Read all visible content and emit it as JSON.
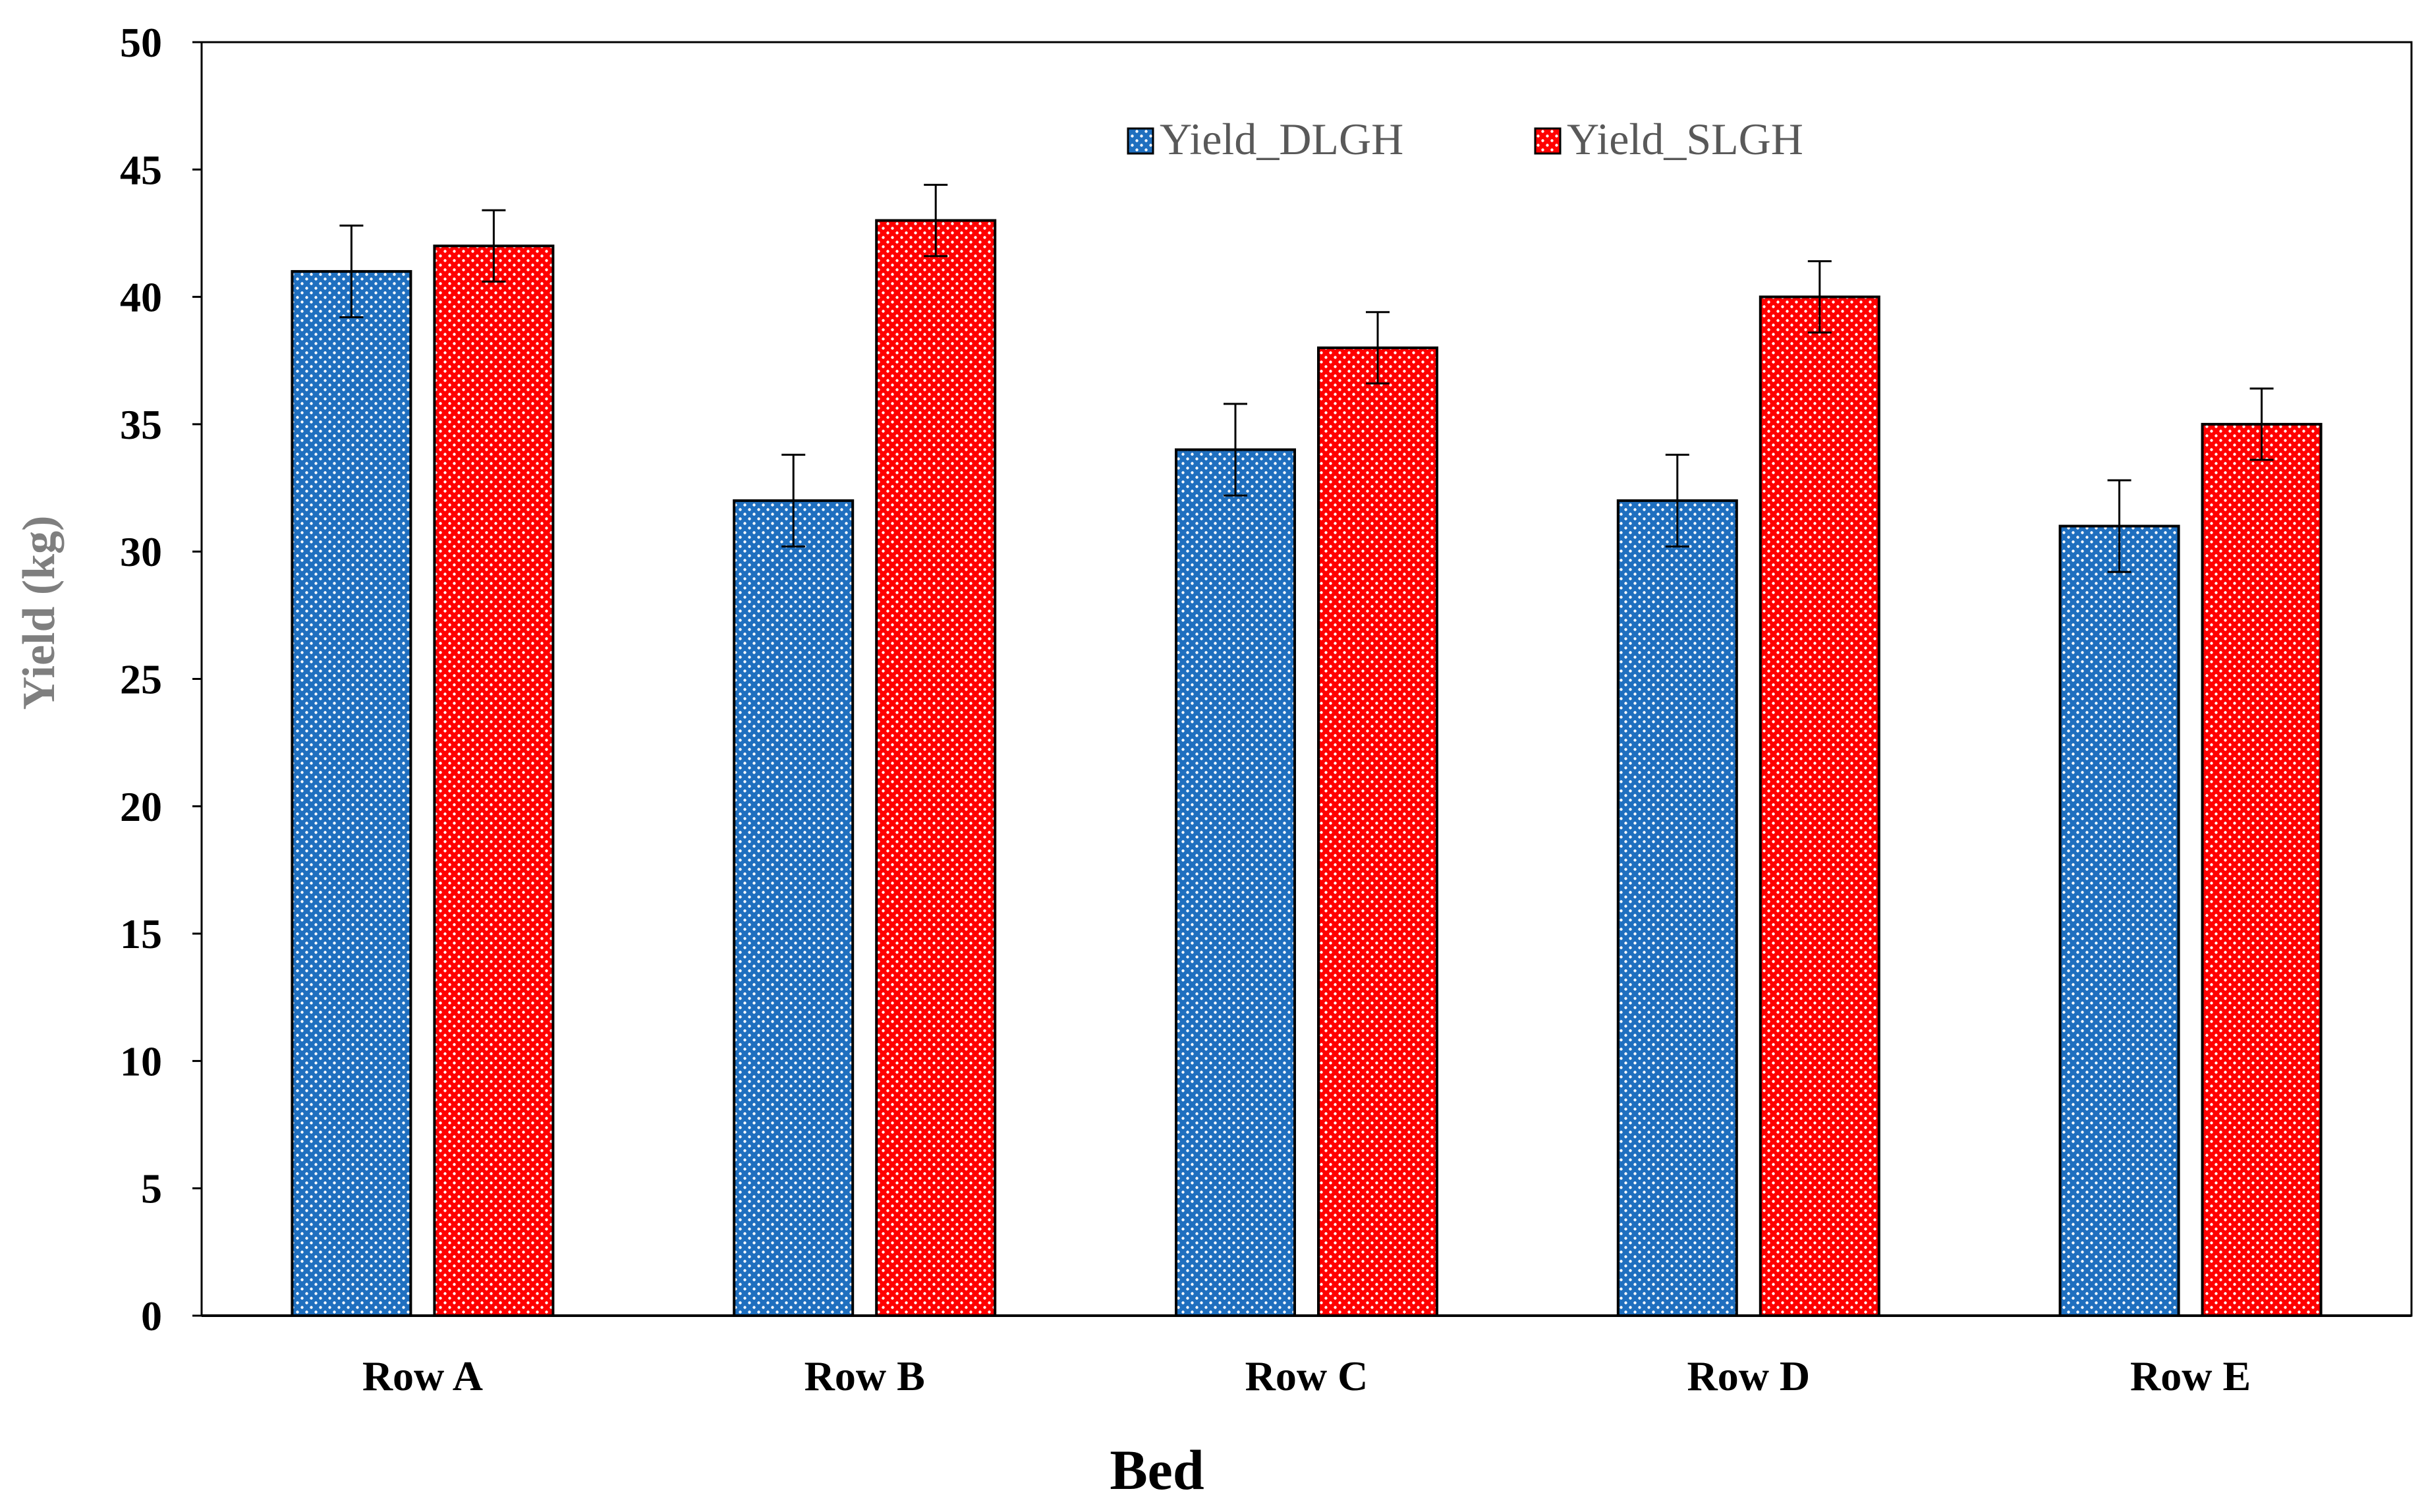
{
  "chart_data": {
    "type": "bar",
    "title": "",
    "xlabel": "Bed",
    "ylabel": "Yield (kg)",
    "categories": [
      "Row A",
      "Row B",
      "Row C",
      "Row D",
      "Row E"
    ],
    "ylim": [
      0,
      50
    ],
    "yticks": [
      0,
      5,
      10,
      15,
      20,
      25,
      30,
      35,
      40,
      45,
      50
    ],
    "legend_position": "top-center",
    "grid": false,
    "series": [
      {
        "name": "Yield_DLGH",
        "color": "#1f6fbf",
        "values": [
          41,
          32,
          34,
          32,
          31
        ],
        "errors": [
          1.8,
          1.8,
          1.8,
          1.8,
          1.8
        ]
      },
      {
        "name": "Yield_SLGH",
        "color": "#ff0000",
        "values": [
          42,
          43,
          38,
          40,
          35
        ],
        "errors": [
          1.4,
          1.4,
          1.4,
          1.4,
          1.4
        ]
      }
    ]
  }
}
